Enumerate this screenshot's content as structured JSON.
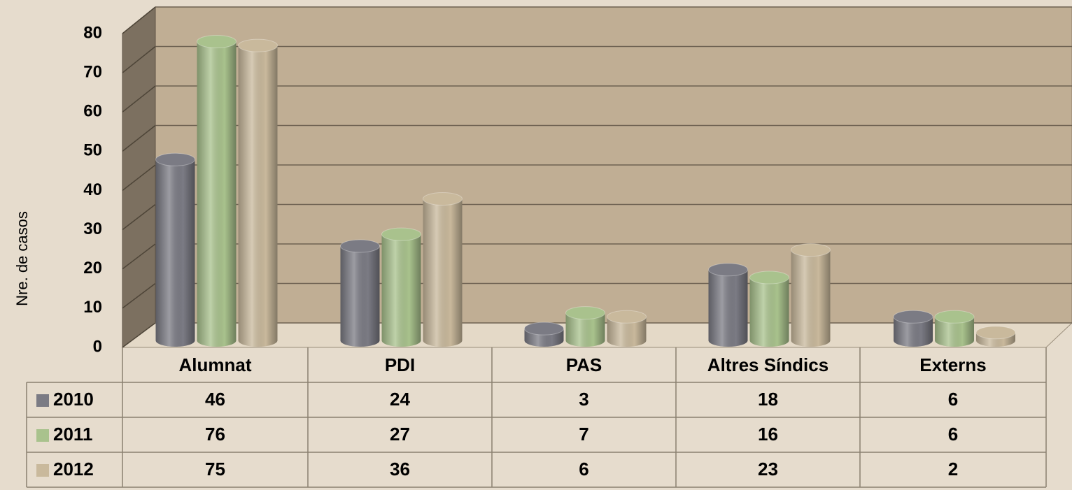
{
  "chart_data": {
    "type": "bar3d",
    "y_label": "Nre. de casos",
    "categories": [
      "Alumnat",
      "PDI",
      "PAS",
      "Altres Síndics",
      "Externs"
    ],
    "series": [
      {
        "name": "2010",
        "color": "#7b7b84",
        "values": [
          46,
          24,
          3,
          18,
          6
        ]
      },
      {
        "name": "2011",
        "color": "#a9c28d",
        "values": [
          76,
          27,
          7,
          16,
          6
        ]
      },
      {
        "name": "2012",
        "color": "#c9b99c",
        "values": [
          75,
          36,
          6,
          23,
          2
        ]
      }
    ],
    "ylim": [
      0,
      80
    ],
    "yticks": [
      0,
      10,
      20,
      30,
      40,
      50,
      60,
      70,
      80
    ],
    "grid": true
  }
}
